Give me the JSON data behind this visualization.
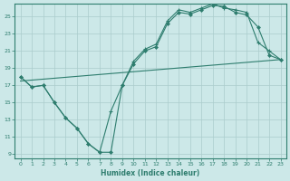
{
  "xlabel": "Humidex (Indice chaleur)",
  "bg_color": "#cce8e8",
  "line_color": "#2e7d6e",
  "grid_color": "#aacccc",
  "xlim": [
    -0.5,
    23.5
  ],
  "ylim": [
    8.5,
    26.5
  ],
  "yticks": [
    9,
    11,
    13,
    15,
    17,
    19,
    21,
    23,
    25
  ],
  "xticks": [
    0,
    1,
    2,
    3,
    4,
    5,
    6,
    7,
    8,
    9,
    10,
    11,
    12,
    13,
    14,
    15,
    16,
    17,
    18,
    19,
    20,
    21,
    22,
    23
  ],
  "curve1_x": [
    0,
    1,
    2,
    3,
    4,
    5,
    6,
    7,
    8,
    9,
    10,
    11,
    12,
    13,
    14,
    15,
    16,
    17,
    18,
    19,
    20,
    21,
    22,
    23
  ],
  "curve1_y": [
    18.0,
    16.8,
    17.0,
    15.0,
    13.2,
    12.0,
    10.2,
    9.2,
    9.2,
    17.0,
    19.5,
    21.0,
    21.5,
    24.2,
    25.5,
    25.3,
    25.8,
    26.3,
    26.2,
    25.5,
    25.2,
    23.8,
    20.5,
    20.0
  ],
  "curve2_x": [
    0,
    1,
    2,
    3,
    4,
    5,
    6,
    7,
    8,
    9,
    10,
    11,
    12,
    13,
    14,
    15,
    16,
    17,
    18,
    19,
    20,
    21,
    22,
    23
  ],
  "curve2_y": [
    18.0,
    16.8,
    17.0,
    15.0,
    13.2,
    12.0,
    10.2,
    9.2,
    14.0,
    17.0,
    19.8,
    21.2,
    21.8,
    24.5,
    25.8,
    25.5,
    26.0,
    26.5,
    26.0,
    25.8,
    25.5,
    22.0,
    21.0,
    20.0
  ],
  "curve3_x": [
    0,
    23
  ],
  "curve3_y": [
    17.5,
    20.0
  ]
}
